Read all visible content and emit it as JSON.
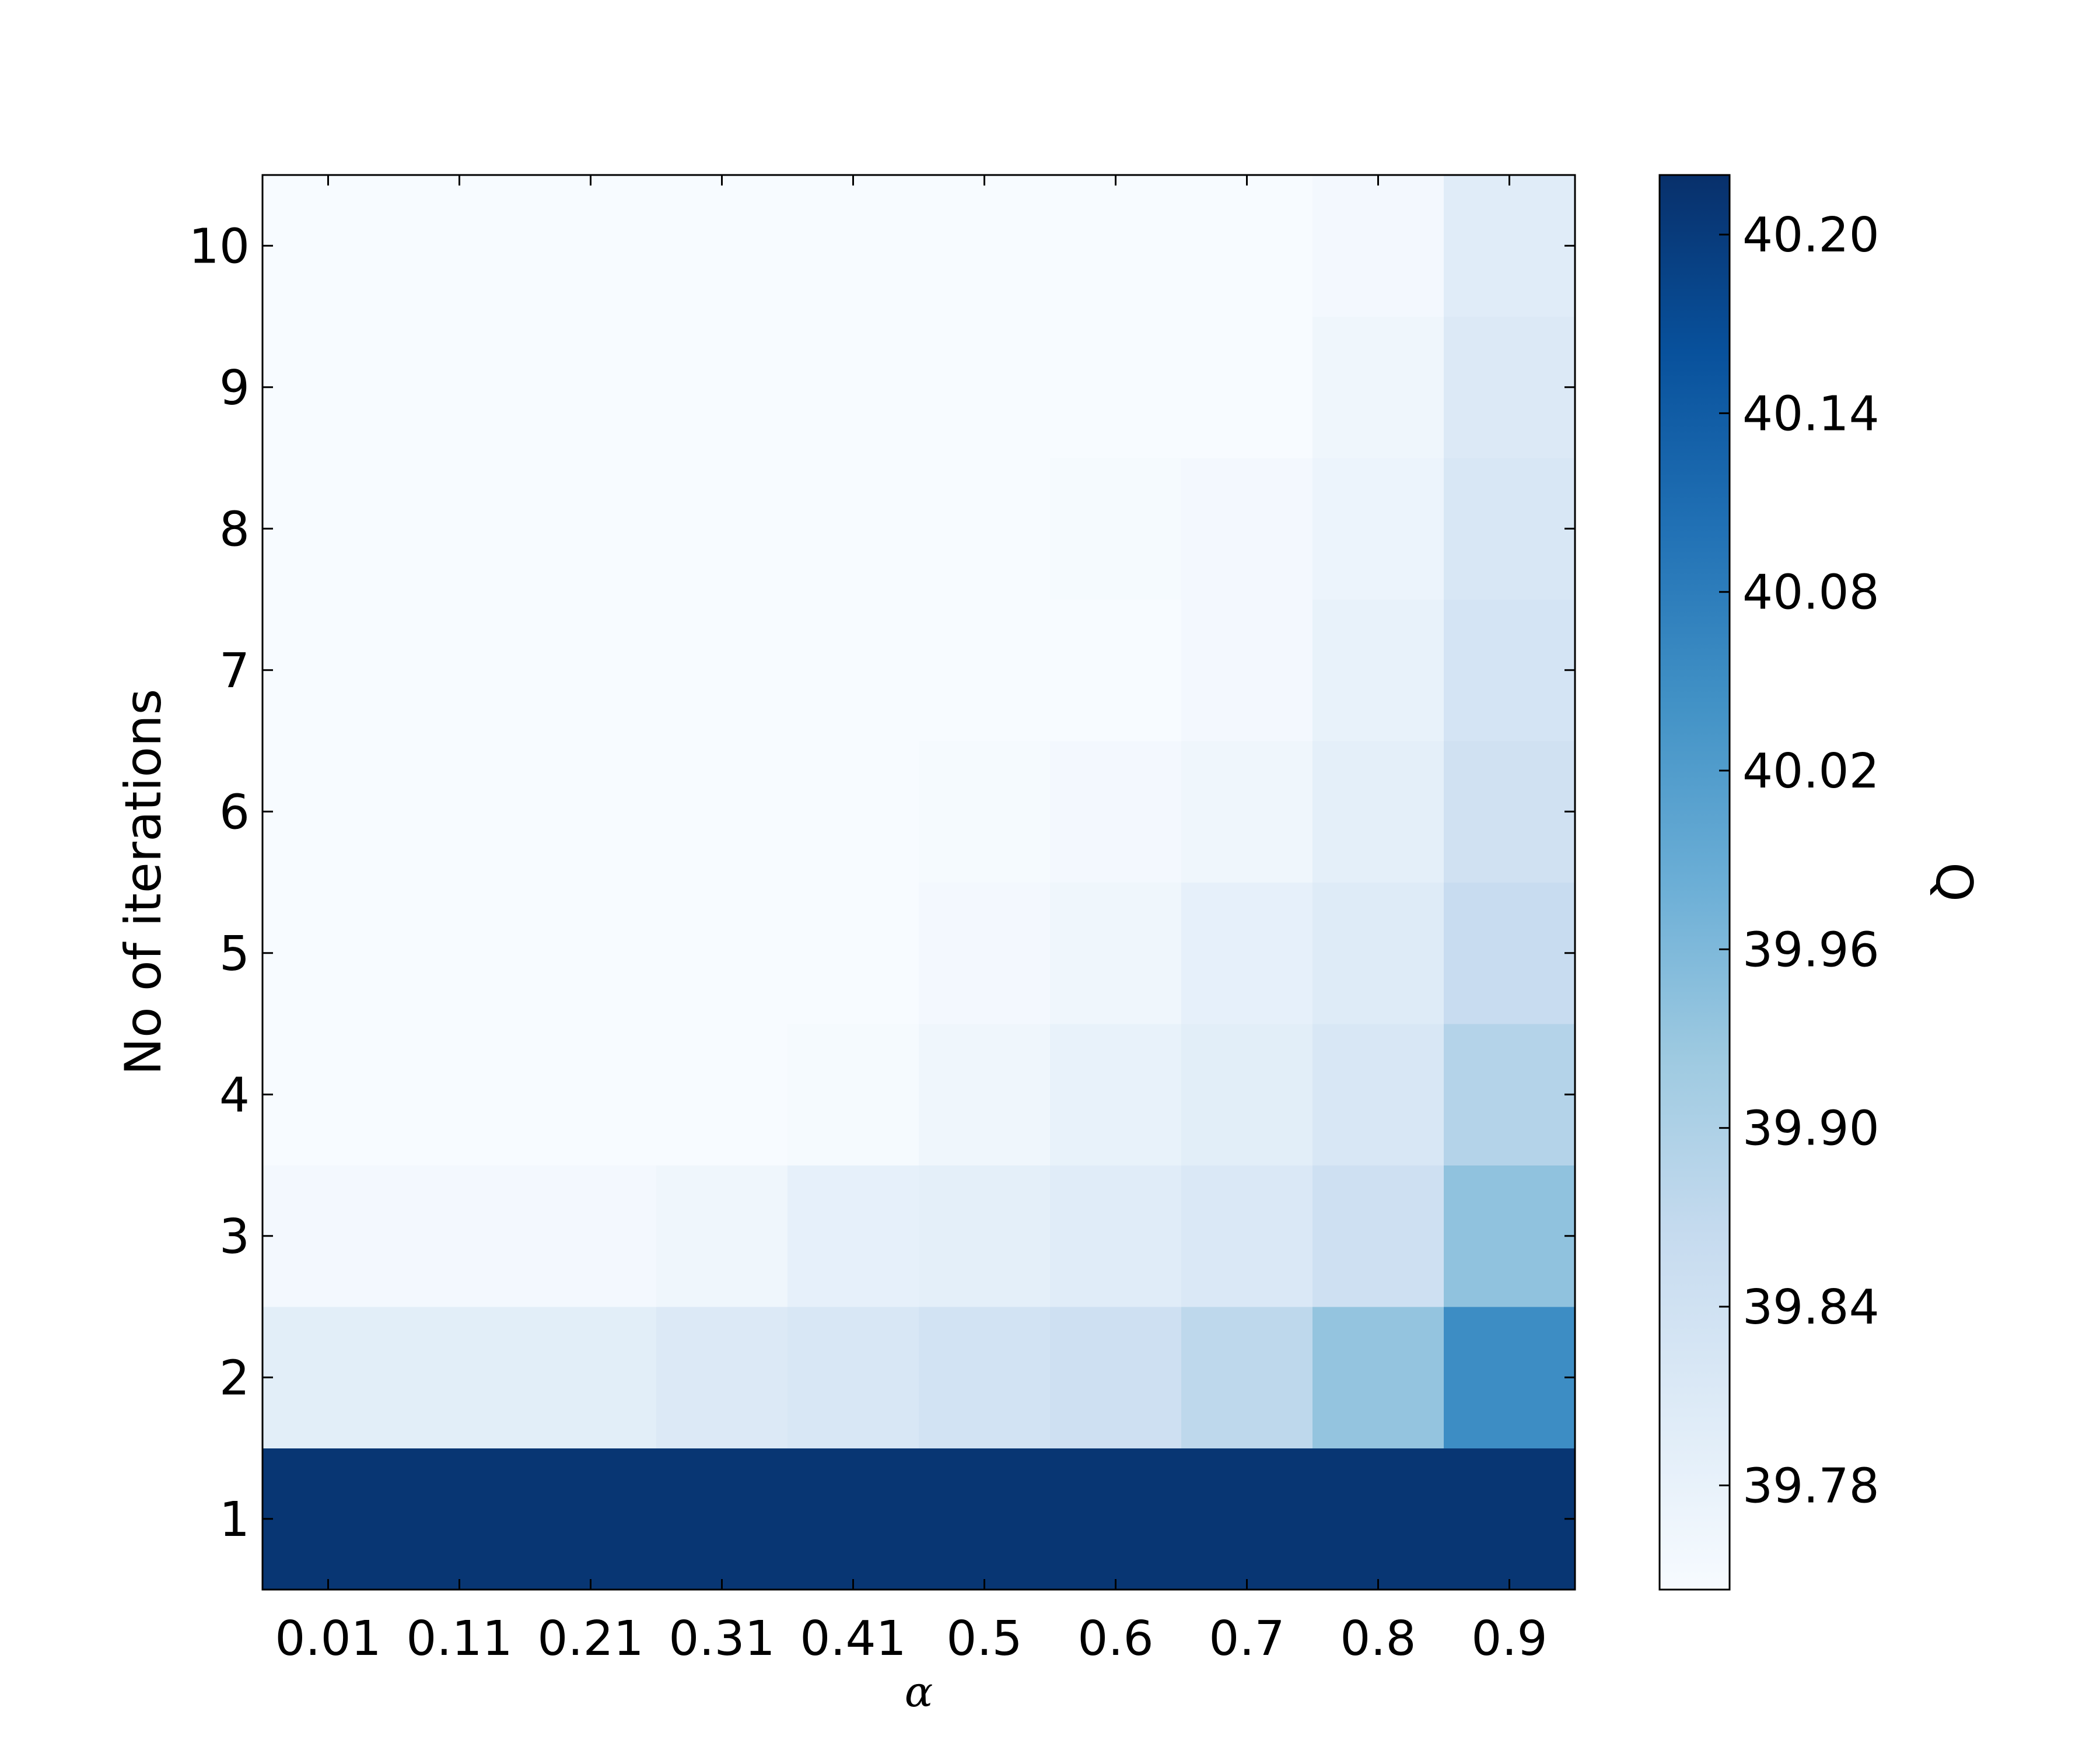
{
  "chart_data": {
    "type": "heatmap",
    "title": "",
    "xlabel": "α",
    "ylabel": "No of iterations",
    "x_categories": [
      "0.01",
      "0.11",
      "0.21",
      "0.31",
      "0.41",
      "0.5",
      "0.6",
      "0.7",
      "0.8",
      "0.9"
    ],
    "y_categories": [
      "1",
      "2",
      "3",
      "4",
      "5",
      "6",
      "7",
      "8",
      "9",
      "10"
    ],
    "values": [
      [
        40.21,
        40.21,
        40.21,
        40.21,
        40.21,
        40.21,
        40.21,
        40.21,
        40.21,
        40.21
      ],
      [
        39.795,
        39.795,
        39.795,
        39.81,
        39.82,
        39.835,
        39.845,
        39.875,
        39.935,
        40.05
      ],
      [
        39.755,
        39.755,
        39.755,
        39.765,
        39.785,
        39.79,
        39.8,
        39.815,
        39.845,
        39.94
      ],
      [
        39.745,
        39.745,
        39.745,
        39.745,
        39.75,
        39.765,
        39.78,
        39.795,
        39.82,
        39.89
      ],
      [
        39.745,
        39.745,
        39.745,
        39.745,
        39.745,
        39.755,
        39.765,
        39.785,
        39.805,
        39.86
      ],
      [
        39.745,
        39.745,
        39.745,
        39.745,
        39.745,
        39.75,
        39.755,
        39.765,
        39.79,
        39.84
      ],
      [
        39.745,
        39.745,
        39.745,
        39.745,
        39.745,
        39.745,
        39.745,
        39.755,
        39.78,
        39.83
      ],
      [
        39.745,
        39.745,
        39.745,
        39.745,
        39.745,
        39.745,
        39.75,
        39.755,
        39.77,
        39.82
      ],
      [
        39.745,
        39.745,
        39.745,
        39.745,
        39.745,
        39.745,
        39.745,
        39.745,
        39.765,
        39.81
      ],
      [
        39.745,
        39.745,
        39.745,
        39.745,
        39.745,
        39.745,
        39.745,
        39.745,
        39.755,
        39.8
      ]
    ],
    "colormap": "Blues",
    "colormap_stops": [
      "#f7fbff",
      "#deebf7",
      "#c6dbef",
      "#9ecae1",
      "#6baed6",
      "#4292c6",
      "#2171b5",
      "#08519c",
      "#08306b"
    ],
    "colorbar": {
      "label": "Q",
      "vmin": 39.745,
      "vmax": 40.22,
      "ticks": [
        "39.78",
        "39.84",
        "39.90",
        "39.96",
        "40.02",
        "40.08",
        "40.14",
        "40.20"
      ]
    },
    "grid": false,
    "legend": "none"
  }
}
